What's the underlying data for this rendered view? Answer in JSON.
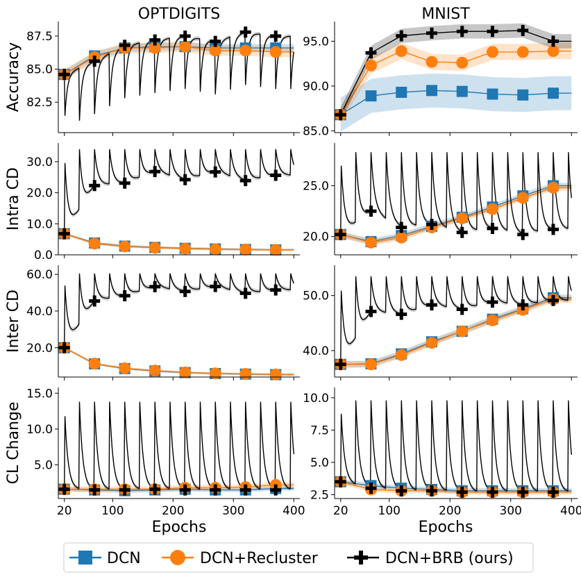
{
  "figure": {
    "col_titles": [
      "OPTDIGITS",
      "MNIST"
    ],
    "xlabel": "Epochs",
    "xticks": [
      20,
      100,
      200,
      300,
      400
    ],
    "xlim": [
      10,
      410
    ],
    "legend": {
      "placement": "bottom-center",
      "entries": [
        {
          "label": "DCN",
          "marker": "square",
          "color": "#1f77b4"
        },
        {
          "label": "DCN+Recluster",
          "marker": "circle",
          "color": "#ff7f0e"
        },
        {
          "label": "DCN+BRB (ours)",
          "marker": "plus",
          "color": "#000000"
        }
      ]
    }
  },
  "chart_data": [
    {
      "type": "line",
      "dataset": "OPTDIGITS",
      "ylabel": "Accuracy",
      "ylim": [
        80.2,
        88.6
      ],
      "yticks": [
        82.5,
        85.0,
        87.5
      ],
      "ytick_labels": [
        "82.5",
        "85.0",
        "87.5"
      ],
      "series": [
        {
          "name": "DCN",
          "x": [
            20,
            70,
            120,
            170,
            220,
            270,
            320,
            370
          ],
          "y": [
            84.6,
            86.0,
            86.6,
            86.7,
            86.7,
            86.6,
            86.6,
            86.6
          ],
          "band": 0.3
        },
        {
          "name": "DCN+Recluster",
          "x": [
            20,
            70,
            120,
            170,
            220,
            270,
            320,
            370
          ],
          "y": [
            84.6,
            85.9,
            86.6,
            86.6,
            86.7,
            86.4,
            86.4,
            86.3
          ],
          "band": 0.4
        },
        {
          "name": "DCN+BRB (ours)",
          "x": [
            20,
            70,
            120,
            170,
            220,
            270,
            320,
            370
          ],
          "y": [
            84.6,
            85.6,
            86.8,
            87.2,
            87.5,
            87.1,
            87.8,
            87.5
          ],
          "cycle_period": 25,
          "cycle_drop": 4.0
        }
      ]
    },
    {
      "type": "line",
      "dataset": "MNIST",
      "ylabel": "",
      "ylim": [
        84.8,
        97.2
      ],
      "yticks": [
        85.0,
        90.0,
        95.0
      ],
      "ytick_labels": [
        "85.0",
        "90.0",
        "95.0"
      ],
      "series": [
        {
          "name": "DCN",
          "x": [
            20,
            70,
            120,
            170,
            220,
            270,
            320,
            370
          ],
          "y": [
            86.8,
            88.9,
            89.3,
            89.5,
            89.4,
            89.1,
            89.0,
            89.2
          ],
          "band": 1.9
        },
        {
          "name": "DCN+Recluster",
          "x": [
            20,
            70,
            120,
            170,
            220,
            270,
            320,
            370
          ],
          "y": [
            86.8,
            92.3,
            93.9,
            92.7,
            92.6,
            93.8,
            93.8,
            93.9
          ],
          "band": 0.9
        },
        {
          "name": "DCN+BRB (ours)",
          "x": [
            20,
            70,
            120,
            170,
            220,
            270,
            320,
            370
          ],
          "y": [
            86.8,
            93.7,
            95.6,
            95.9,
            96.1,
            96.1,
            96.2,
            95.0
          ],
          "band": 0.8
        }
      ]
    },
    {
      "type": "line",
      "dataset": "OPTDIGITS",
      "ylabel": "Intra CD",
      "ylim": [
        0.0,
        36.0
      ],
      "yticks": [
        0.0,
        10.0,
        20.0,
        30.0
      ],
      "ytick_labels": [
        "0.0",
        "10.0",
        "20.0",
        "30.0"
      ],
      "series": [
        {
          "name": "DCN",
          "x": [
            20,
            70,
            120,
            170,
            220,
            270,
            320,
            370
          ],
          "y": [
            6.8,
            3.8,
            2.8,
            2.4,
            2.1,
            1.9,
            1.7,
            1.6
          ],
          "band": 0.4
        },
        {
          "name": "DCN+Recluster",
          "x": [
            20,
            70,
            120,
            170,
            220,
            270,
            320,
            370
          ],
          "y": [
            6.8,
            3.6,
            2.7,
            2.3,
            2.0,
            1.8,
            1.7,
            1.6
          ],
          "band": 0.4
        },
        {
          "name": "DCN+BRB (ours)",
          "x": [
            20,
            70,
            120,
            170,
            220,
            270,
            320,
            370
          ],
          "y": [
            6.8,
            22.3,
            23.1,
            26.8,
            24.2,
            26.7,
            23.9,
            25.6
          ],
          "cycle_period": 25,
          "cycle_peak": 34.0
        }
      ]
    },
    {
      "type": "line",
      "dataset": "MNIST",
      "ylabel": "",
      "ylim": [
        18.2,
        29.2
      ],
      "yticks": [
        20.0,
        25.0
      ],
      "ytick_labels": [
        "20.0",
        "25.0"
      ],
      "series": [
        {
          "name": "DCN",
          "x": [
            20,
            70,
            120,
            170,
            220,
            270,
            320,
            370
          ],
          "y": [
            20.2,
            19.5,
            20.1,
            21.0,
            21.9,
            22.9,
            24.0,
            25.0
          ],
          "band": 0.3
        },
        {
          "name": "DCN+Recluster",
          "x": [
            20,
            70,
            120,
            170,
            220,
            270,
            320,
            370
          ],
          "y": [
            20.2,
            19.4,
            19.9,
            20.9,
            21.8,
            22.7,
            23.8,
            24.8
          ],
          "band": 0.3
        },
        {
          "name": "DCN+BRB (ours)",
          "x": [
            20,
            70,
            120,
            170,
            220,
            270,
            320,
            370
          ],
          "y": [
            20.2,
            22.5,
            20.9,
            21.2,
            20.4,
            20.8,
            20.2,
            20.7
          ],
          "cycle_period": 25,
          "cycle_peak": 28.3
        }
      ]
    },
    {
      "type": "line",
      "dataset": "OPTDIGITS",
      "ylabel": "Inter CD",
      "ylim": [
        4.0,
        65.0
      ],
      "yticks": [
        20.0,
        40.0,
        60.0
      ],
      "ytick_labels": [
        "20.0",
        "40.0",
        "60.0"
      ],
      "series": [
        {
          "name": "DCN",
          "x": [
            20,
            70,
            120,
            170,
            220,
            270,
            320,
            370
          ],
          "y": [
            20.0,
            11.2,
            8.6,
            7.3,
            6.4,
            5.9,
            5.6,
            5.3
          ],
          "band": 0.6
        },
        {
          "name": "DCN+Recluster",
          "x": [
            20,
            70,
            120,
            170,
            220,
            270,
            320,
            370
          ],
          "y": [
            20.0,
            11.3,
            8.8,
            7.5,
            6.5,
            6.0,
            5.7,
            5.4
          ],
          "band": 0.6
        },
        {
          "name": "DCN+BRB (ours)",
          "x": [
            20,
            70,
            120,
            170,
            220,
            270,
            320,
            370
          ],
          "y": [
            20.0,
            45.5,
            48.4,
            53.3,
            50.7,
            53.4,
            49.7,
            51.5
          ],
          "cycle_period": 25,
          "cycle_peak": 60.5
        }
      ]
    },
    {
      "type": "line",
      "dataset": "MNIST",
      "ylabel": "",
      "ylim": [
        35.2,
        55.5
      ],
      "yticks": [
        40.0,
        50.0
      ],
      "ytick_labels": [
        "40.0",
        "50.0"
      ],
      "series": [
        {
          "name": "DCN",
          "x": [
            20,
            70,
            120,
            170,
            220,
            270,
            320,
            370
          ],
          "y": [
            37.5,
            37.6,
            39.4,
            41.6,
            43.5,
            45.7,
            47.6,
            49.6
          ],
          "band": 0.6
        },
        {
          "name": "DCN+Recluster",
          "x": [
            20,
            70,
            120,
            170,
            220,
            270,
            320,
            370
          ],
          "y": [
            37.5,
            37.5,
            39.2,
            41.4,
            43.5,
            45.5,
            47.4,
            49.3
          ],
          "band": 0.6
        },
        {
          "name": "DCN+BRB (ours)",
          "x": [
            20,
            70,
            120,
            170,
            220,
            270,
            320,
            370
          ],
          "y": [
            37.5,
            47.1,
            46.6,
            48.3,
            47.5,
            48.8,
            48.3,
            49.1
          ],
          "cycle_period": 25,
          "cycle_peak": 53.5
        }
      ]
    },
    {
      "type": "line",
      "dataset": "OPTDIGITS",
      "ylabel": "CL Change",
      "ylim": [
        0.3,
        15.8
      ],
      "yticks": [
        5.0,
        10.0,
        15.0
      ],
      "ytick_labels": [
        "5.0",
        "10.0",
        "15.0"
      ],
      "series": [
        {
          "name": "DCN",
          "x": [
            20,
            70,
            120,
            170,
            220,
            270,
            320,
            370
          ],
          "y": [
            1.6,
            1.5,
            1.4,
            1.5,
            1.6,
            1.5,
            1.5,
            1.7
          ],
          "band": 0.3
        },
        {
          "name": "DCN+Recluster",
          "x": [
            20,
            70,
            120,
            170,
            220,
            270,
            320,
            370
          ],
          "y": [
            1.6,
            1.6,
            1.6,
            1.6,
            1.8,
            1.8,
            1.9,
            2.2
          ],
          "band": 0.4
        },
        {
          "name": "DCN+BRB (ours)",
          "x": [
            20,
            70,
            120,
            170,
            220,
            270,
            320,
            370
          ],
          "y": [
            1.6,
            1.5,
            1.5,
            1.6,
            1.5,
            1.5,
            1.5,
            1.5
          ],
          "cycle_period": 25,
          "cycle_peak": 13.8
        }
      ]
    },
    {
      "type": "line",
      "dataset": "MNIST",
      "ylabel": "",
      "ylim": [
        2.2,
        10.8
      ],
      "yticks": [
        2.5,
        5.0,
        7.5,
        10.0
      ],
      "ytick_labels": [
        "2.5",
        "5.0",
        "7.5",
        "10.0"
      ],
      "series": [
        {
          "name": "DCN",
          "x": [
            20,
            70,
            120,
            170,
            220,
            270,
            320,
            370
          ],
          "y": [
            3.5,
            3.2,
            3.0,
            2.9,
            2.8,
            2.8,
            2.8,
            2.8
          ],
          "band": 0.2
        },
        {
          "name": "DCN+Recluster",
          "x": [
            20,
            70,
            120,
            170,
            220,
            270,
            320,
            370
          ],
          "y": [
            3.5,
            2.9,
            2.8,
            2.8,
            2.7,
            2.7,
            2.7,
            2.7
          ],
          "band": 0.2
        },
        {
          "name": "DCN+BRB (ours)",
          "x": [
            20,
            70,
            120,
            170,
            220,
            270,
            320,
            370
          ],
          "y": [
            3.5,
            3.0,
            2.8,
            2.8,
            2.7,
            2.7,
            2.7,
            2.7
          ],
          "cycle_period": 25,
          "cycle_peak": 9.8
        }
      ]
    }
  ]
}
